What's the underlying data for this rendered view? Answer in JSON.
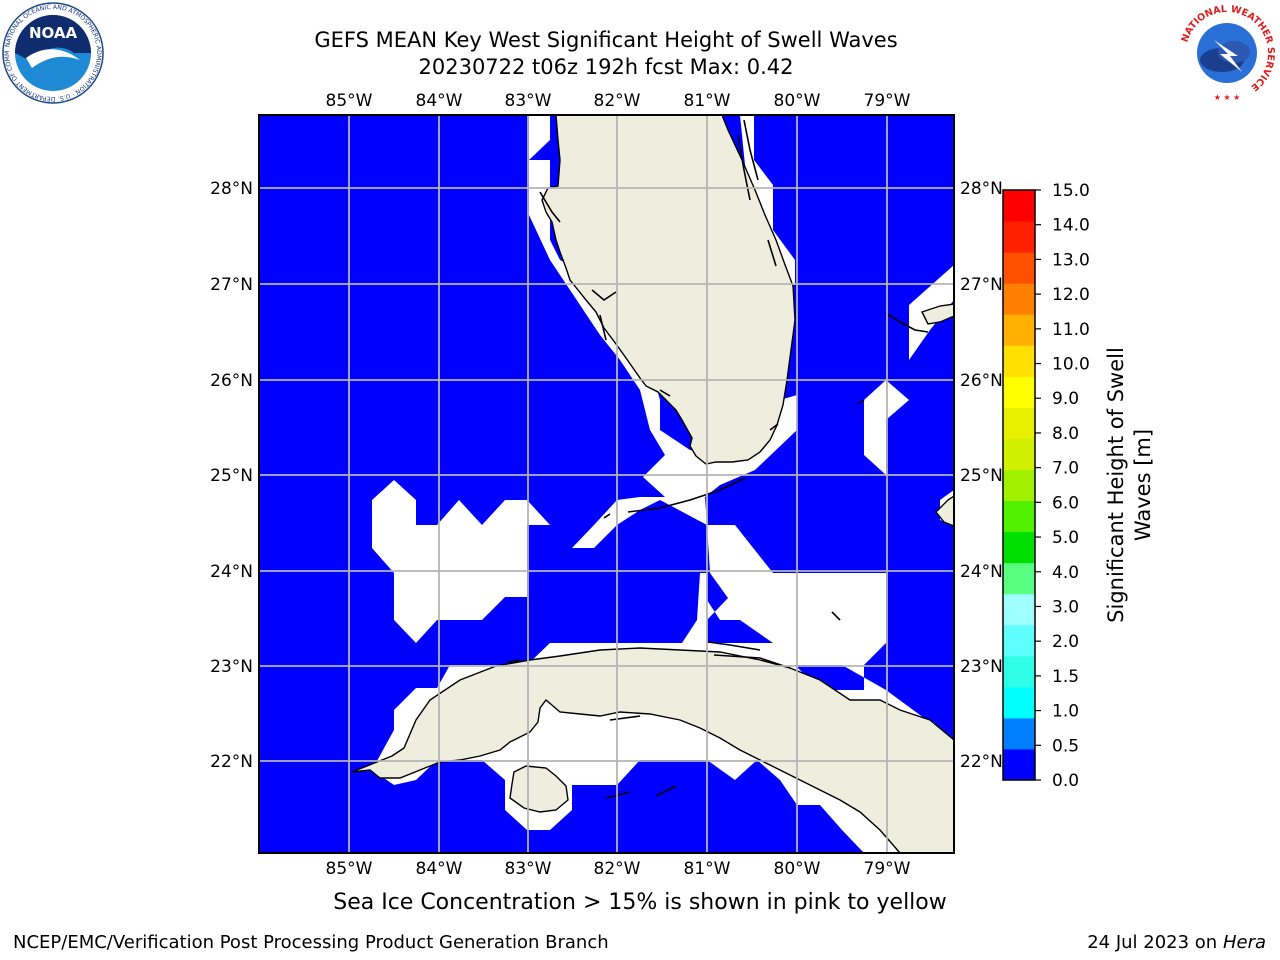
{
  "header": {
    "title_line1": "GEFS MEAN Key West Significant Height of Swell Waves",
    "title_line2": "20230722 t06z 192h fcst   Max: 0.42"
  },
  "logos": {
    "left": "NOAA",
    "left_ring": "NATIONAL OCEANIC AND ATMOSPHERIC ADMINISTRATION · U.S. DEPARTMENT OF COMMERCE",
    "right": "NATIONAL WEATHER SERVICE"
  },
  "map": {
    "lon_labels": [
      "85°W",
      "84°W",
      "83°W",
      "82°W",
      "81°W",
      "80°W",
      "79°W"
    ],
    "lat_labels": [
      "28°N",
      "27°N",
      "26°N",
      "25°N",
      "24°N",
      "23°N",
      "22°N"
    ],
    "colors": {
      "sea": "#0000ff",
      "land": "#eeeedf",
      "missing": "#ffffff",
      "grid": "#b4b4b4"
    }
  },
  "colorbar": {
    "label_line1": "Significant Height of Swell",
    "label_line2": "Waves [m]",
    "ticks": [
      "0.0",
      "0.5",
      "1.0",
      "1.5",
      "2.0",
      "3.0",
      "4.0",
      "5.0",
      "6.0",
      "7.0",
      "8.0",
      "9.0",
      "10.0",
      "11.0",
      "12.0",
      "13.0",
      "14.0",
      "15.0"
    ],
    "colors": [
      "#0000ff",
      "#0080ff",
      "#00ffff",
      "#30ffe8",
      "#60ffff",
      "#a0ffff",
      "#58ff80",
      "#00e000",
      "#50f000",
      "#a0f000",
      "#d0f000",
      "#e8f000",
      "#ffff00",
      "#ffe000",
      "#ffb000",
      "#ff8000",
      "#ff5000",
      "#ff2000",
      "#ff0000"
    ]
  },
  "footer": {
    "note": "Sea Ice Concentration > 15% is shown in pink to yellow",
    "branch": "NCEP/EMC/Verification Post Processing Product Generation Branch",
    "date": "24 Jul 2023 on",
    "host": "Hera"
  }
}
